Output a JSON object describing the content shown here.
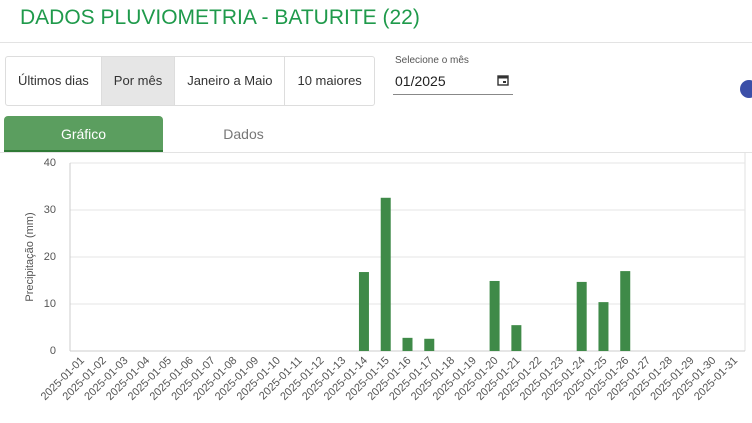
{
  "header": {
    "title": "DADOS PLUVIOMETRIA - BATURITE (22)"
  },
  "filters": {
    "buttons": [
      "Últimos dias",
      "Por mês",
      "Janeiro a Maio",
      "10 maiores"
    ],
    "month_label": "Selecione o mês",
    "month_value": "01/2025"
  },
  "tabs": [
    "Gráfico",
    "Dados"
  ],
  "chart_data": {
    "type": "bar",
    "y_label": "Precipitação (mm)",
    "categories": [
      "2025-01-01",
      "2025-01-02",
      "2025-01-03",
      "2025-01-04",
      "2025-01-05",
      "2025-01-06",
      "2025-01-07",
      "2025-01-08",
      "2025-01-09",
      "2025-01-10",
      "2025-01-11",
      "2025-01-12",
      "2025-01-13",
      "2025-01-14",
      "2025-01-15",
      "2025-01-16",
      "2025-01-17",
      "2025-01-18",
      "2025-01-19",
      "2025-01-20",
      "2025-01-21",
      "2025-01-22",
      "2025-01-23",
      "2025-01-24",
      "2025-01-25",
      "2025-01-26",
      "2025-01-27",
      "2025-01-28",
      "2025-01-29",
      "2025-01-30",
      "2025-01-31"
    ],
    "values": [
      0,
      0,
      0,
      0,
      0,
      0,
      0,
      0,
      0,
      0,
      0,
      0,
      0,
      16.8,
      32.6,
      2.8,
      2.6,
      0,
      0,
      14.9,
      5.5,
      0,
      0,
      14.7,
      10.4,
      17.0,
      0,
      0,
      0,
      0,
      0
    ],
    "color": "#3f8a48",
    "ylim": [
      0,
      40
    ],
    "yticks": [
      0,
      10,
      20,
      30,
      40
    ],
    "grid": true
  }
}
